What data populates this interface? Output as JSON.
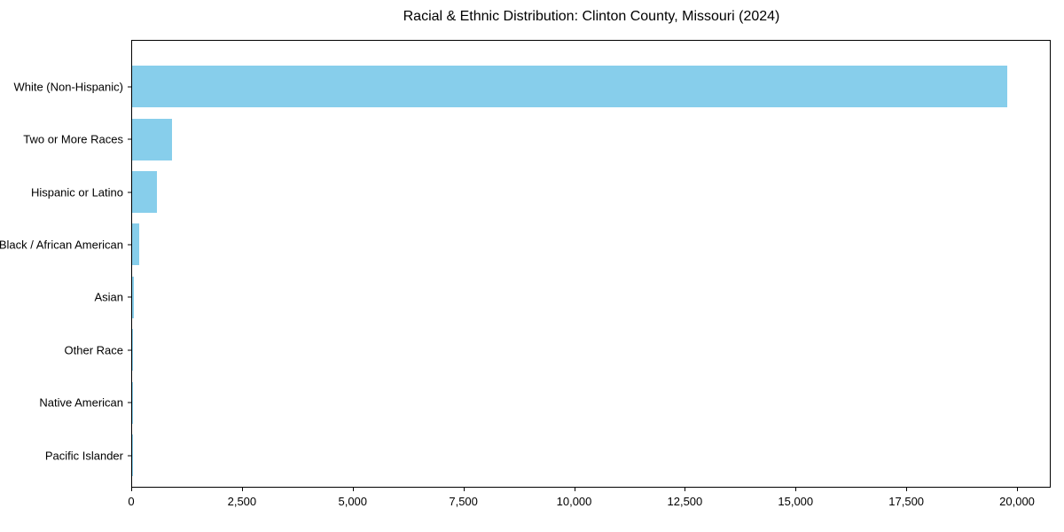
{
  "chart_data": {
    "type": "bar",
    "orientation": "horizontal",
    "title": "Racial & Ethnic Distribution: Clinton County, Missouri (2024)",
    "xlabel": "",
    "ylabel": "",
    "categories": [
      "White (Non-Hispanic)",
      "Two or More Races",
      "Hispanic or Latino",
      "Black / African American",
      "Asian",
      "Other Race",
      "Native American",
      "Pacific Islander"
    ],
    "values": [
      19760,
      905,
      570,
      170,
      40,
      30,
      25,
      10
    ],
    "bar_color": "#87CEEB",
    "xlim": [
      0,
      20760
    ],
    "x_ticks": [
      0,
      2500,
      5000,
      7500,
      10000,
      12500,
      15000,
      17500,
      20000
    ],
    "x_tick_labels": [
      "0",
      "2,500",
      "5,000",
      "7,500",
      "10,000",
      "12,500",
      "15,000",
      "17,500",
      "20,000"
    ],
    "grid": false,
    "legend": "none",
    "background_color": "#ffffff",
    "axis_color": "#000000"
  }
}
